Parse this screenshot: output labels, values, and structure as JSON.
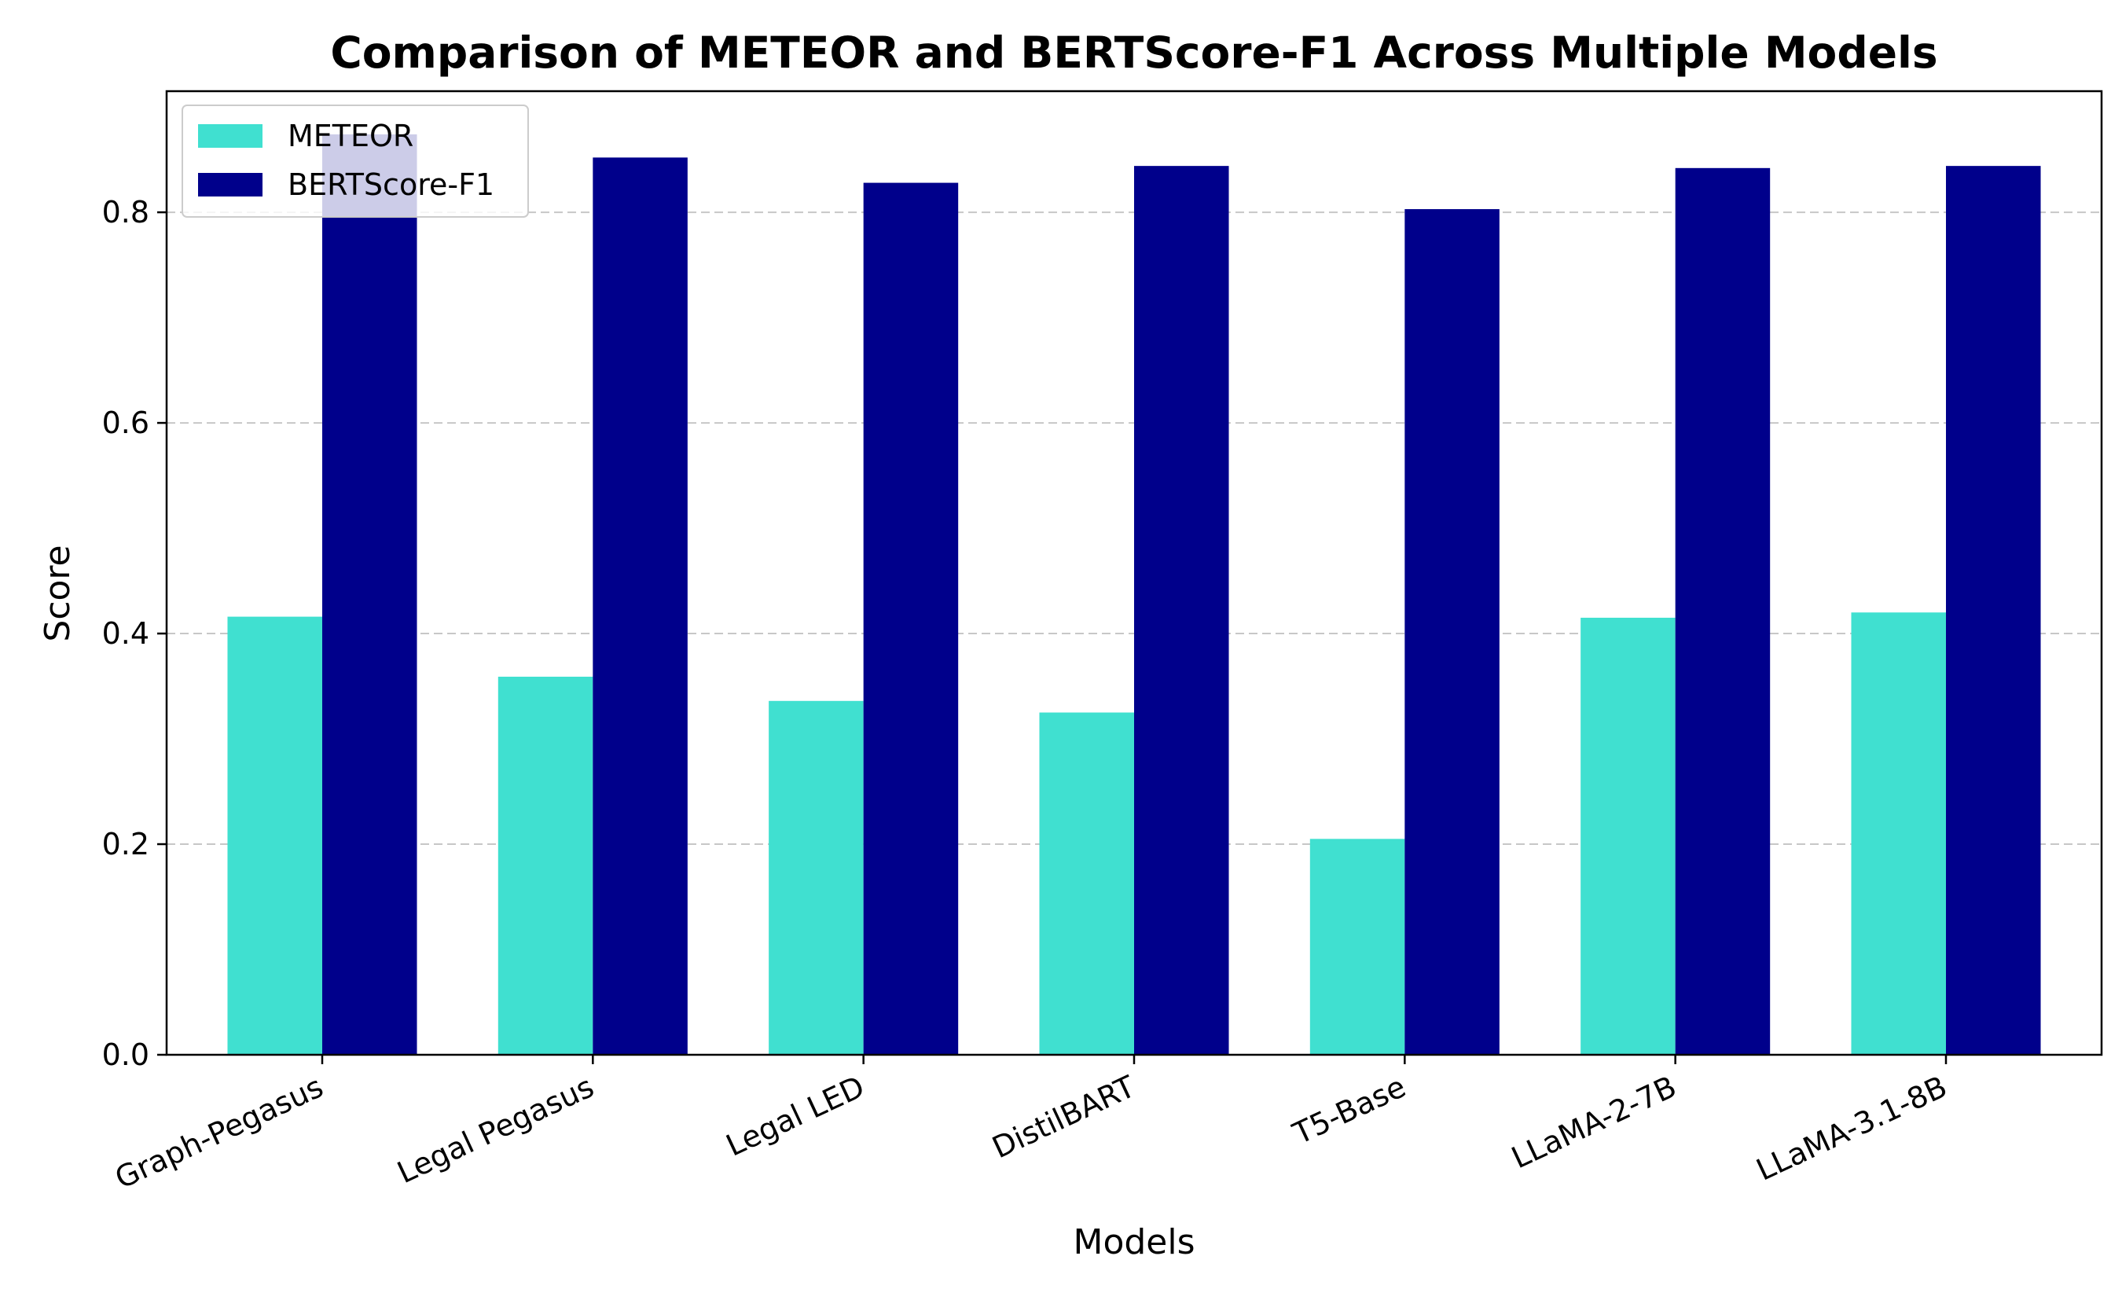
{
  "chart_data": {
    "type": "bar",
    "title": "Comparison of METEOR and BERTScore-F1 Across Multiple Models",
    "xlabel": "Models",
    "ylabel": "Score",
    "ylim": [
      0,
      0.915
    ],
    "yticks": [
      0.0,
      0.2,
      0.4,
      0.6,
      0.8
    ],
    "ytick_labels": [
      "0.0",
      "0.2",
      "0.4",
      "0.6",
      "0.8"
    ],
    "grid": "y-dashed",
    "legend_position": "top-left",
    "categories": [
      "Graph-Pegasus",
      "Legal Pegasus",
      "Legal LED",
      "DistilBART",
      "T5-Base",
      "LLaMA-2-7B",
      "LLaMA-3.1-8B"
    ],
    "series": [
      {
        "name": "METEOR",
        "color": "#40e0d0",
        "values": [
          0.416,
          0.359,
          0.336,
          0.325,
          0.205,
          0.415,
          0.42
        ]
      },
      {
        "name": "BERTScore-F1",
        "color": "#00008b",
        "values": [
          0.874,
          0.852,
          0.828,
          0.844,
          0.803,
          0.842,
          0.844
        ]
      }
    ]
  }
}
